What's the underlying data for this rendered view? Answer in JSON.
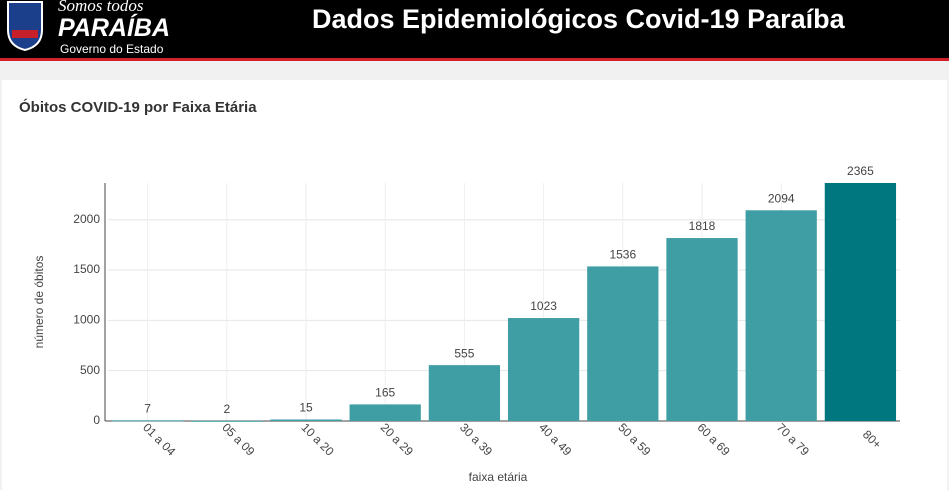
{
  "header": {
    "logo_top": "Somos todos",
    "logo_main": "PARAÍBA",
    "logo_sub": "Governo do Estado",
    "title": "Dados Epidemiológicos Covid-19 Paraíba"
  },
  "chart_data": {
    "type": "bar",
    "title": "Óbitos COVID-19 por Faixa Etária",
    "x_label": "faixa etária",
    "y_label": "número de óbitos",
    "categories": [
      "01 a 04",
      "05 a 09",
      "10 a 20",
      "20 a 29",
      "30 a 39",
      "40 a 49",
      "50 a 59",
      "60 a 69",
      "70 a 79",
      "80+"
    ],
    "values": [
      7,
      2,
      15,
      165,
      555,
      1023,
      1536,
      1818,
      2094,
      2365
    ],
    "colors": [
      "#3f9ea4",
      "#3f9ea4",
      "#3f9ea4",
      "#3f9ea4",
      "#3f9ea4",
      "#3f9ea4",
      "#3f9ea4",
      "#3f9ea4",
      "#3f9ea4",
      "#00777e"
    ],
    "ylim": [
      0,
      2365
    ],
    "yticks": [
      0,
      500,
      1000,
      1500,
      2000
    ],
    "grid": true
  }
}
